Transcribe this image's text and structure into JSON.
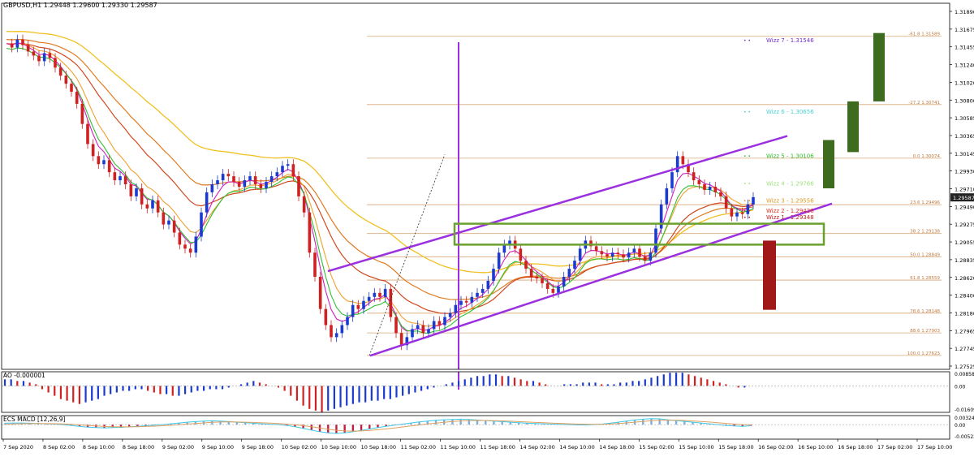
{
  "chart_data": {
    "type": "candlestick",
    "symbol_line": "GBPUSD,H1  1.29448 1.29600 1.29330 1.29587",
    "current_price": "1.29587",
    "y_ticks": [
      "1.31890",
      "1.31675",
      "1.31455",
      "1.31240",
      "1.31020",
      "1.30800",
      "1.30585",
      "1.30365",
      "1.30145",
      "1.29930",
      "1.29710",
      "1.29490",
      "1.29275",
      "1.29055",
      "1.28835",
      "1.28620",
      "1.28400",
      "1.28180",
      "1.27965",
      "1.27745",
      "1.27525"
    ],
    "ylim": [
      1.2745,
      1.32
    ],
    "x_ticks": [
      "7 Sep 2020",
      "8 Sep 02:00",
      "8 Sep 10:00",
      "8 Sep 18:00",
      "9 Sep 02:00",
      "9 Sep 10:00",
      "9 Sep 18:00",
      "10 Sep 02:00",
      "10 Sep 10:00",
      "10 Sep 18:00",
      "11 Sep 02:00",
      "11 Sep 10:00",
      "11 Sep 18:00",
      "14 Sep 02:00",
      "14 Sep 10:00",
      "14 Sep 18:00",
      "15 Sep 02:00",
      "15 Sep 10:00",
      "15 Sep 18:00",
      "16 Sep 02:00",
      "16 Sep 10:00",
      "16 Sep 18:00",
      "17 Sep 02:00",
      "17 Sep 10:00"
    ],
    "close_series": [
      1.315,
      1.3145,
      1.3155,
      1.3148,
      1.314,
      1.3135,
      1.3128,
      1.3138,
      1.3132,
      1.312,
      1.311,
      1.31,
      1.309,
      1.3075,
      1.305,
      1.3025,
      1.301,
      1.3,
      1.3005,
      1.299,
      1.298,
      1.2985,
      1.2975,
      1.296,
      1.297,
      1.295,
      1.2945,
      1.2955,
      1.294,
      1.2925,
      1.293,
      1.2915,
      1.29,
      1.2895,
      1.289,
      1.291,
      1.294,
      1.2965,
      1.2975,
      1.298,
      1.2988,
      1.2985,
      1.2978,
      1.2972,
      1.298,
      1.2985,
      1.2975,
      1.297,
      1.2978,
      1.2985,
      1.299,
      1.2998,
      1.3,
      1.2985,
      1.296,
      1.294,
      1.289,
      1.286,
      1.282,
      1.28,
      1.2785,
      1.279,
      1.28,
      1.281,
      1.2825,
      1.282,
      1.283,
      1.2835,
      1.284,
      1.2835,
      1.2845,
      1.281,
      1.279,
      1.2775,
      1.2785,
      1.2795,
      1.28,
      1.279,
      1.2795,
      1.2805,
      1.28,
      1.281,
      1.2815,
      1.2825,
      1.283,
      1.2828,
      1.2835,
      1.284,
      1.2845,
      1.2855,
      1.287,
      1.289,
      1.29,
      1.2905,
      1.2895,
      1.288,
      1.287,
      1.286,
      1.2858,
      1.2852,
      1.2845,
      1.284,
      1.2848,
      1.286,
      1.287,
      1.288,
      1.2895,
      1.2905,
      1.2898,
      1.2892,
      1.2888,
      1.2885,
      1.289,
      1.2888,
      1.2884,
      1.289,
      1.2895,
      1.2885,
      1.288,
      1.289,
      1.292,
      1.295,
      1.297,
      1.299,
      1.301,
      1.3,
      1.299,
      1.298,
      1.2975,
      1.2968,
      1.2972,
      1.2965,
      1.296,
      1.2945,
      1.2935,
      1.294,
      1.2938,
      1.295,
      1.2959
    ],
    "levels": [
      {
        "label": "Wizz 7 - 1.31546",
        "value": 1.31546,
        "color": "#7030d0"
      },
      {
        "label": "Wizz 6 - 1.30656",
        "value": 1.30656,
        "color": "#4ad0d0"
      },
      {
        "label": "Wizz 5 - 1.30106",
        "value": 1.30106,
        "color": "#30c030"
      },
      {
        "label": "Wizz 4 - 1.29766",
        "value": 1.29766,
        "color": "#a0e080"
      },
      {
        "label": "Wizz 3 - 1.29556",
        "value": 1.29556,
        "color": "#e09a20"
      },
      {
        "label": "Wizz 2 - 1.29426",
        "value": 1.29426,
        "color": "#e03020"
      },
      {
        "label": "Wizz 1 - 1.29348",
        "value": 1.29348,
        "color": "#c02020"
      }
    ],
    "fib_levels": [
      {
        "label": "-61.8 1.31589",
        "value": 1.31589
      },
      {
        "label": "-27.2 1.30741",
        "value": 1.30741
      },
      {
        "label": "0.0 1.30074",
        "value": 1.30074
      },
      {
        "label": "23.6 1.29496",
        "value": 1.29496
      },
      {
        "label": "38.2 1.29138",
        "value": 1.29138
      },
      {
        "label": "50.0 1.28849",
        "value": 1.28849
      },
      {
        "label": "61.8 1.28559",
        "value": 1.28559
      },
      {
        "label": "78.6 1.28148",
        "value": 1.28148
      },
      {
        "label": "88.6 1.27903",
        "value": 1.27903
      },
      {
        "label": "100.0 1.27623",
        "value": 1.27623
      }
    ],
    "ao": {
      "label": "AO -0.000001",
      "y_ticks": [
        "0.008584",
        "0.00",
        "-0.016094"
      ],
      "values": [
        0.004,
        0.004,
        0.003,
        0.003,
        0.002,
        0.001,
        -0.002,
        -0.004,
        -0.006,
        -0.008,
        -0.009,
        -0.01,
        -0.011,
        -0.01,
        -0.009,
        -0.008,
        -0.006,
        -0.005,
        -0.004,
        -0.003,
        -0.003,
        -0.002,
        -0.002,
        -0.003,
        -0.004,
        -0.005,
        -0.005,
        -0.006,
        -0.006,
        -0.005,
        -0.004,
        -0.003,
        -0.003,
        -0.002,
        -0.002,
        -0.002,
        -0.001,
        0.0,
        0.001,
        0.002,
        0.003,
        0.002,
        0.001,
        0.0,
        -0.001,
        -0.003,
        -0.006,
        -0.009,
        -0.012,
        -0.014,
        -0.015,
        -0.016,
        -0.015,
        -0.014,
        -0.013,
        -0.012,
        -0.011,
        -0.01,
        -0.01,
        -0.009,
        -0.009,
        -0.008,
        -0.008,
        -0.007,
        -0.006,
        -0.005,
        -0.004,
        -0.003,
        -0.002,
        -0.001,
        0.0,
        0.001,
        0.002,
        0.003,
        0.004,
        0.005,
        0.006,
        0.006,
        0.007,
        0.007,
        0.006,
        0.006,
        0.005,
        0.004,
        0.003,
        0.003,
        0.002,
        0.001,
        0.0,
        0.0,
        0.001,
        0.001,
        0.001,
        0.002,
        0.002,
        0.002,
        0.001,
        0.001,
        0.001,
        0.002,
        0.002,
        0.003,
        0.003,
        0.004,
        0.005,
        0.006,
        0.007,
        0.008,
        0.008,
        0.008,
        0.007,
        0.006,
        0.005,
        0.004,
        0.003,
        0.002,
        0.001,
        0.0,
        -0.001,
        -0.001,
        0.0
      ]
    },
    "macd": {
      "label": "ECS MACD [12,26,9]",
      "y_ticks": [
        "0.0032425",
        "0.00",
        "-0.005220"
      ],
      "values": [
        0.0005,
        0.0006,
        0.0006,
        0.0005,
        0.0004,
        0.0003,
        0.0002,
        0.0,
        -0.0003,
        -0.0006,
        -0.0009,
        -0.0011,
        -0.0012,
        -0.0011,
        -0.001,
        -0.0008,
        -0.0006,
        -0.0004,
        -0.0002,
        0.0,
        0.0003,
        0.0006,
        0.0009,
        0.0011,
        0.0013,
        0.0014,
        0.0013,
        0.0011,
        0.0009,
        0.0007,
        0.0005,
        0.0003,
        0.0001,
        0.0,
        -0.0003,
        -0.0008,
        -0.0014,
        -0.002,
        -0.0026,
        -0.003,
        -0.0032,
        -0.003,
        -0.0026,
        -0.0021,
        -0.0016,
        -0.0011,
        -0.0006,
        -0.0002,
        0.0002,
        0.0006,
        0.001,
        0.0013,
        0.0016,
        0.0018,
        0.0019,
        0.002,
        0.0019,
        0.0017,
        0.0015,
        0.0013,
        0.0011,
        0.0009,
        0.0007,
        0.0005,
        0.0004,
        0.0003,
        0.0002,
        0.0001,
        0.0,
        -0.0001,
        -0.0001,
        0.0,
        0.0002,
        0.0005,
        0.0009,
        0.0013,
        0.0017,
        0.002,
        0.0022,
        0.0021,
        0.0018,
        0.0015,
        0.0012,
        0.0009,
        0.0006,
        0.0003,
        0.0,
        -0.0003,
        -0.0005,
        -0.0006,
        -0.0004
      ]
    }
  }
}
